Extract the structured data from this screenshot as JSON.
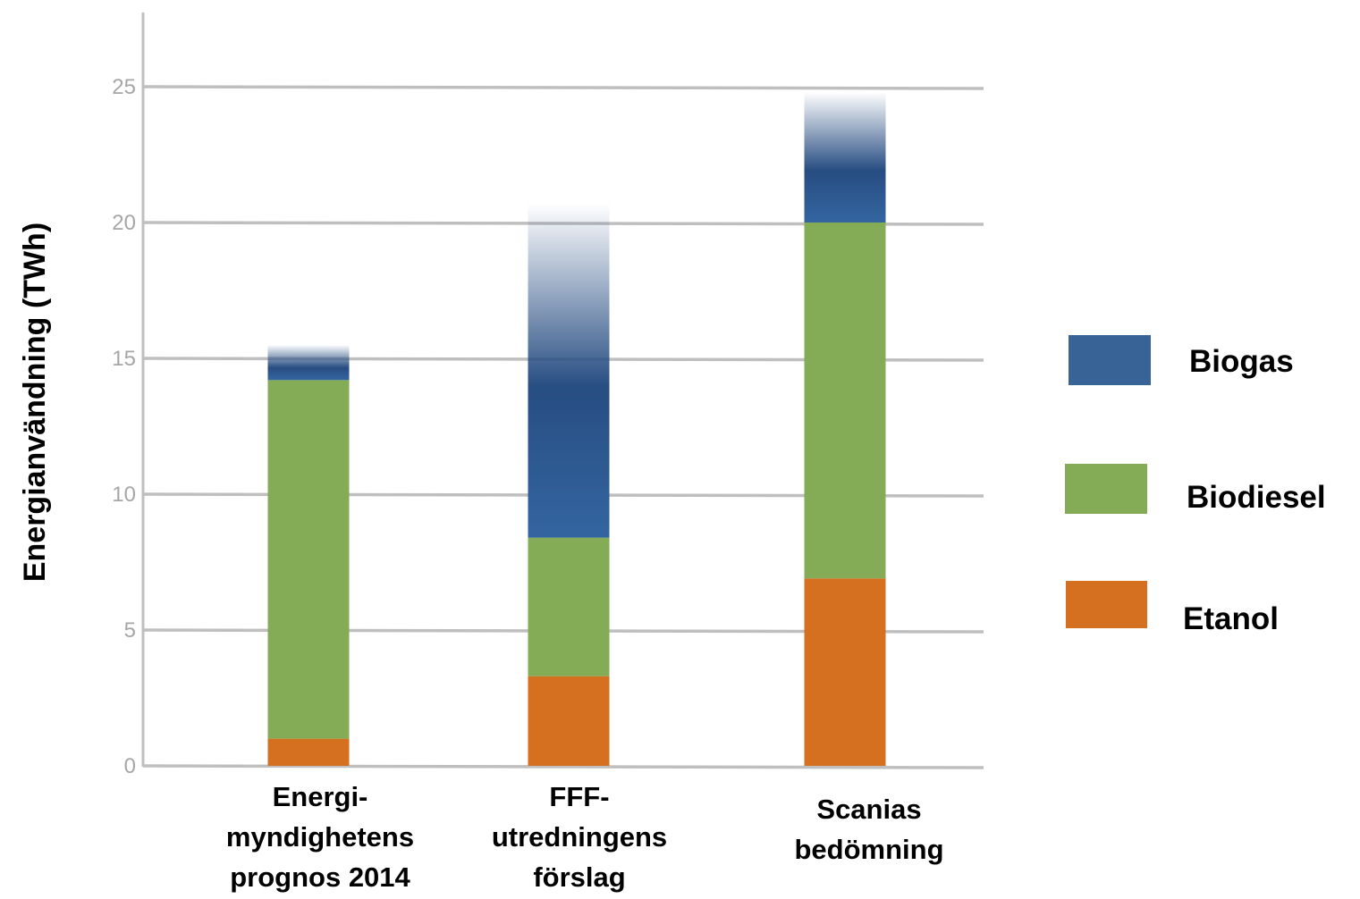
{
  "chart_data": {
    "type": "bar",
    "stacked": true,
    "ylabel": "Energianvändning (TWh)",
    "xlabel": "",
    "ylim": [
      0,
      28
    ],
    "yticks": [
      0,
      5,
      10,
      15,
      20,
      25
    ],
    "grid": true,
    "legend_position": "right",
    "categories": [
      [
        "Energi-",
        "myndighetens",
        "prognos 2014"
      ],
      [
        "FFF-",
        "utredningens",
        "förslag"
      ],
      [
        "Scanias",
        "bedömning"
      ]
    ],
    "series": [
      {
        "name": "Etanol",
        "color": "#d4701f",
        "values": [
          1.0,
          3.3,
          6.9
        ]
      },
      {
        "name": "Biodiesel",
        "color": "#84ac57",
        "values": [
          13.2,
          5.1,
          13.1
        ]
      },
      {
        "name": "Biogas",
        "color": "#2a5a92",
        "values": [
          1.3,
          12.3,
          4.8
        ]
      }
    ],
    "legend": [
      {
        "name": "Biogas",
        "color": "#376397"
      },
      {
        "name": "Biodiesel",
        "color": "#84ac57"
      },
      {
        "name": "Etanol",
        "color": "#d4701f"
      }
    ]
  }
}
